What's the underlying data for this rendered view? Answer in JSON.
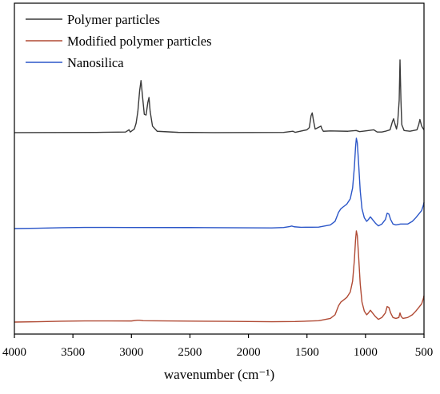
{
  "chart_data": {
    "type": "line",
    "title": "",
    "xlabel": "wavenumber (cm⁻¹)",
    "ylabel": "",
    "xlim": [
      4000,
      500
    ],
    "x_reversed": true,
    "y_ticks_shown": false,
    "x_ticks": [
      4000,
      3500,
      3000,
      2500,
      2000,
      1500,
      1000,
      500
    ],
    "tick_labels": [
      "4000",
      "3500",
      "3000",
      "2500",
      "2000",
      "1500",
      "1000",
      "500"
    ],
    "legend_position": "top-left",
    "grid": false,
    "series": [
      {
        "name": "Polymer particles",
        "color": "#3a3a3a",
        "points": [
          [
            4000,
            0.012
          ],
          [
            3700,
            0.013
          ],
          [
            3300,
            0.014
          ],
          [
            3050,
            0.02
          ],
          [
            3020,
            0.05
          ],
          [
            3010,
            0.02
          ],
          [
            2975,
            0.06
          ],
          [
            2960,
            0.14
          ],
          [
            2945,
            0.3
          ],
          [
            2930,
            0.58
          ],
          [
            2918,
            0.72
          ],
          [
            2905,
            0.5
          ],
          [
            2890,
            0.26
          ],
          [
            2875,
            0.25
          ],
          [
            2860,
            0.42
          ],
          [
            2850,
            0.49
          ],
          [
            2840,
            0.3
          ],
          [
            2820,
            0.1
          ],
          [
            2780,
            0.03
          ],
          [
            2600,
            0.015
          ],
          [
            2300,
            0.012
          ],
          [
            2000,
            0.013
          ],
          [
            1700,
            0.014
          ],
          [
            1620,
            0.03
          ],
          [
            1600,
            0.015
          ],
          [
            1500,
            0.05
          ],
          [
            1480,
            0.08
          ],
          [
            1465,
            0.24
          ],
          [
            1455,
            0.28
          ],
          [
            1445,
            0.18
          ],
          [
            1430,
            0.06
          ],
          [
            1380,
            0.1
          ],
          [
            1375,
            0.07
          ],
          [
            1360,
            0.03
          ],
          [
            1300,
            0.035
          ],
          [
            1150,
            0.03
          ],
          [
            1080,
            0.04
          ],
          [
            1050,
            0.025
          ],
          [
            1000,
            0.035
          ],
          [
            930,
            0.05
          ],
          [
            900,
            0.02
          ],
          [
            860,
            0.02
          ],
          [
            830,
            0.03
          ],
          [
            790,
            0.05
          ],
          [
            770,
            0.16
          ],
          [
            760,
            0.2
          ],
          [
            750,
            0.14
          ],
          [
            735,
            0.06
          ],
          [
            725,
            0.15
          ],
          [
            712,
            0.45
          ],
          [
            705,
            1.0
          ],
          [
            697,
            0.45
          ],
          [
            690,
            0.12
          ],
          [
            670,
            0.04
          ],
          [
            620,
            0.03
          ],
          [
            560,
            0.05
          ],
          [
            545,
            0.12
          ],
          [
            535,
            0.19
          ],
          [
            520,
            0.1
          ],
          [
            505,
            0.06
          ],
          [
            500,
            0.05
          ]
        ]
      },
      {
        "name": "Modified polymer particles",
        "color": "#b04a34",
        "points": [
          [
            4000,
            0.0
          ],
          [
            3800,
            0.004
          ],
          [
            3600,
            0.009
          ],
          [
            3400,
            0.013
          ],
          [
            3200,
            0.013
          ],
          [
            3000,
            0.012
          ],
          [
            2950,
            0.02
          ],
          [
            2930,
            0.02
          ],
          [
            2900,
            0.015
          ],
          [
            2500,
            0.01
          ],
          [
            2200,
            0.008
          ],
          [
            2000,
            0.006
          ],
          [
            1800,
            0.004
          ],
          [
            1600,
            0.006
          ],
          [
            1500,
            0.01
          ],
          [
            1400,
            0.015
          ],
          [
            1300,
            0.04
          ],
          [
            1260,
            0.08
          ],
          [
            1230,
            0.18
          ],
          [
            1210,
            0.22
          ],
          [
            1190,
            0.24
          ],
          [
            1160,
            0.27
          ],
          [
            1130,
            0.33
          ],
          [
            1110,
            0.45
          ],
          [
            1095,
            0.68
          ],
          [
            1085,
            0.9
          ],
          [
            1078,
            1.0
          ],
          [
            1070,
            0.95
          ],
          [
            1060,
            0.75
          ],
          [
            1045,
            0.42
          ],
          [
            1030,
            0.22
          ],
          [
            1010,
            0.12
          ],
          [
            990,
            0.08
          ],
          [
            975,
            0.1
          ],
          [
            958,
            0.13
          ],
          [
            940,
            0.1
          ],
          [
            915,
            0.06
          ],
          [
            890,
            0.03
          ],
          [
            860,
            0.05
          ],
          [
            830,
            0.1
          ],
          [
            815,
            0.17
          ],
          [
            800,
            0.16
          ],
          [
            785,
            0.1
          ],
          [
            765,
            0.05
          ],
          [
            740,
            0.04
          ],
          [
            715,
            0.05
          ],
          [
            705,
            0.1
          ],
          [
            695,
            0.06
          ],
          [
            680,
            0.04
          ],
          [
            640,
            0.05
          ],
          [
            600,
            0.08
          ],
          [
            570,
            0.12
          ],
          [
            545,
            0.16
          ],
          [
            520,
            0.2
          ],
          [
            505,
            0.26
          ],
          [
            500,
            0.29
          ]
        ]
      },
      {
        "name": "Nanosilica",
        "color": "#2b56c8",
        "points": [
          [
            4000,
            0.0
          ],
          [
            3800,
            0.004
          ],
          [
            3600,
            0.009
          ],
          [
            3400,
            0.013
          ],
          [
            3200,
            0.013
          ],
          [
            3000,
            0.012
          ],
          [
            2500,
            0.011
          ],
          [
            2200,
            0.009
          ],
          [
            2000,
            0.008
          ],
          [
            1800,
            0.007
          ],
          [
            1700,
            0.012
          ],
          [
            1650,
            0.022
          ],
          [
            1630,
            0.028
          ],
          [
            1610,
            0.02
          ],
          [
            1550,
            0.014
          ],
          [
            1400,
            0.016
          ],
          [
            1300,
            0.04
          ],
          [
            1260,
            0.08
          ],
          [
            1230,
            0.18
          ],
          [
            1210,
            0.22
          ],
          [
            1190,
            0.24
          ],
          [
            1160,
            0.27
          ],
          [
            1130,
            0.33
          ],
          [
            1110,
            0.45
          ],
          [
            1095,
            0.68
          ],
          [
            1085,
            0.9
          ],
          [
            1078,
            1.0
          ],
          [
            1070,
            0.95
          ],
          [
            1060,
            0.75
          ],
          [
            1045,
            0.42
          ],
          [
            1030,
            0.22
          ],
          [
            1010,
            0.12
          ],
          [
            990,
            0.08
          ],
          [
            975,
            0.1
          ],
          [
            958,
            0.13
          ],
          [
            940,
            0.1
          ],
          [
            915,
            0.06
          ],
          [
            890,
            0.03
          ],
          [
            860,
            0.05
          ],
          [
            830,
            0.1
          ],
          [
            815,
            0.17
          ],
          [
            800,
            0.16
          ],
          [
            785,
            0.1
          ],
          [
            765,
            0.05
          ],
          [
            740,
            0.04
          ],
          [
            700,
            0.05
          ],
          [
            640,
            0.05
          ],
          [
            600,
            0.08
          ],
          [
            570,
            0.12
          ],
          [
            545,
            0.16
          ],
          [
            520,
            0.2
          ],
          [
            505,
            0.26
          ],
          [
            500,
            0.29
          ]
        ]
      }
    ]
  }
}
